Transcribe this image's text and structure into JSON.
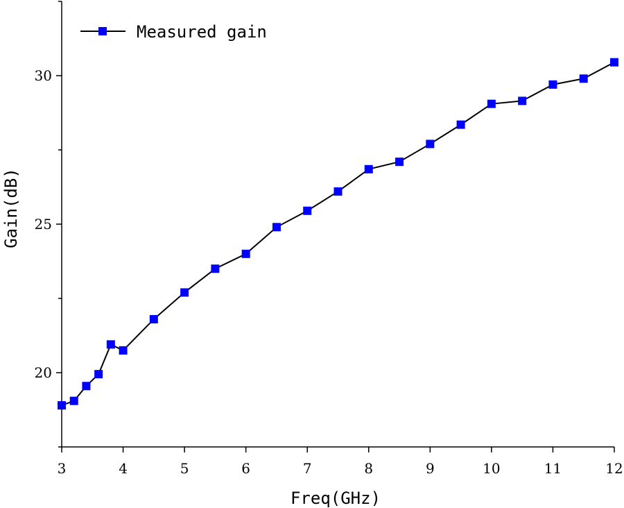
{
  "chart_data": {
    "type": "line",
    "title": "",
    "xlabel": "Freq(GHz)",
    "ylabel": "Gain(dB)",
    "xlim": [
      3,
      12
    ],
    "ylim": [
      17.5,
      32.5
    ],
    "xticks": [
      3,
      4,
      5,
      6,
      7,
      8,
      9,
      10,
      11,
      12
    ],
    "yticks_major": [
      20,
      25,
      30
    ],
    "yticks_minor": [
      17.5,
      22.5,
      27.5,
      32.5
    ],
    "grid": false,
    "legend_position": "top-left",
    "series": [
      {
        "name": "Measured gain",
        "color": "#0000ff",
        "line_color": "#000000",
        "marker": "square",
        "x": [
          3,
          3.2,
          3.4,
          3.6,
          3.8,
          4,
          4.5,
          5,
          5.5,
          6,
          6.5,
          7,
          7.5,
          8,
          8.5,
          9,
          9.5,
          10,
          10.5,
          11,
          11.5,
          12
        ],
        "y": [
          18.9,
          19.05,
          19.55,
          19.95,
          20.95,
          20.75,
          21.8,
          22.7,
          23.5,
          24.0,
          24.9,
          25.45,
          26.1,
          26.85,
          27.1,
          27.7,
          28.35,
          29.05,
          29.15,
          29.7,
          29.9,
          30.45
        ]
      }
    ]
  }
}
